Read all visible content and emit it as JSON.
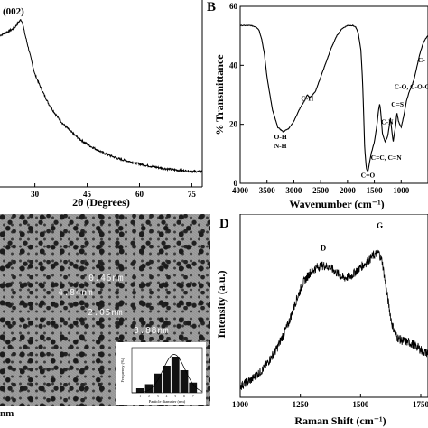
{
  "panels": {
    "b_letter": "B",
    "d_letter": "D"
  },
  "chart_data": [
    {
      "id": "xrd",
      "type": "line",
      "xlabel": "2θ (Degrees)",
      "ylabel": "",
      "xlim": [
        20,
        78
      ],
      "ylim": [
        0,
        1
      ],
      "x_ticks": [
        30,
        45,
        60,
        75
      ],
      "annotations": [
        {
          "text": "(002)",
          "x": 21.5,
          "y": 0.97
        }
      ],
      "series": [
        {
          "x": [
            20,
            22,
            24,
            25.5,
            26,
            26.5,
            27,
            28,
            29,
            30,
            32,
            34,
            36,
            38,
            40,
            42,
            44,
            46,
            48,
            50,
            52,
            54,
            56,
            58,
            60,
            62,
            64,
            66,
            68,
            70,
            72,
            74,
            76,
            78
          ],
          "values": [
            0.86,
            0.88,
            0.9,
            0.94,
            0.95,
            0.93,
            0.88,
            0.8,
            0.72,
            0.64,
            0.55,
            0.47,
            0.41,
            0.36,
            0.32,
            0.285,
            0.255,
            0.23,
            0.21,
            0.19,
            0.175,
            0.16,
            0.15,
            0.14,
            0.13,
            0.122,
            0.115,
            0.108,
            0.102,
            0.097,
            0.093,
            0.09,
            0.088,
            0.086
          ]
        }
      ]
    },
    {
      "id": "ftir",
      "type": "line",
      "xlabel": "Wavenumber (cm⁻¹)",
      "ylabel": "% Transmittance",
      "xlim": [
        4000,
        500
      ],
      "ylim": [
        0,
        60
      ],
      "x_ticks": [
        4000,
        3500,
        3000,
        2500,
        2000,
        1500,
        1000
      ],
      "y_ticks": [
        0,
        20,
        40,
        60
      ],
      "annotations": [
        {
          "text": "O-H",
          "x": 3250,
          "y": 15
        },
        {
          "text": "N-H",
          "x": 3250,
          "y": 12
        },
        {
          "text": "C-H",
          "x": 2750,
          "y": 28
        },
        {
          "text": "C=O",
          "x": 1620,
          "y": 2
        },
        {
          "text": "C=C, C=N",
          "x": 1280,
          "y": 8
        },
        {
          "text": "C-N",
          "x": 1260,
          "y": 20
        },
        {
          "text": "C=S",
          "x": 1070,
          "y": 26
        },
        {
          "text": "C-O, C-O-C",
          "x": 800,
          "y": 32
        },
        {
          "text": "C-",
          "x": 620,
          "y": 41
        }
      ],
      "series": [
        {
          "x": [
            4000,
            3900,
            3800,
            3700,
            3650,
            3600,
            3550,
            3500,
            3400,
            3300,
            3200,
            3100,
            3000,
            2950,
            2900,
            2800,
            2750,
            2700,
            2600,
            2500,
            2400,
            2300,
            2200,
            2100,
            2000,
            1900,
            1850,
            1800,
            1750,
            1720,
            1700,
            1680,
            1650,
            1620,
            1600,
            1580,
            1560,
            1500,
            1450,
            1420,
            1400,
            1380,
            1350,
            1300,
            1250,
            1200,
            1150,
            1100,
            1080,
            1050,
            1000,
            950,
            900,
            850,
            800,
            750,
            700,
            650,
            600,
            550,
            500
          ],
          "values": [
            53.5,
            53.5,
            53.5,
            53,
            52,
            49,
            44,
            36,
            25,
            19,
            17.5,
            18.5,
            21,
            23,
            25,
            28,
            30,
            29,
            31,
            36,
            41,
            46,
            50,
            52.5,
            53.5,
            53.5,
            53,
            51,
            45,
            35,
            24,
            12,
            5,
            4,
            6,
            8,
            10,
            14,
            20,
            25,
            27,
            24,
            17,
            14,
            16,
            22,
            14,
            20,
            24,
            21,
            19,
            23,
            28,
            31,
            33,
            36,
            40,
            44,
            47,
            49,
            50
          ]
        }
      ]
    },
    {
      "id": "raman",
      "type": "line",
      "xlabel": "Raman Shift (cm⁻¹)",
      "ylabel": "Intensity (a.u.)",
      "xlim": [
        1000,
        1780
      ],
      "ylim": [
        0,
        1
      ],
      "x_ticks": [
        1000,
        1250,
        1500,
        1750
      ],
      "annotations": [
        {
          "text": "D",
          "x": 1345,
          "y": 0.8
        },
        {
          "text": "G",
          "x": 1580,
          "y": 0.92
        }
      ],
      "series": [
        {
          "x": [
            1000,
            1050,
            1100,
            1150,
            1200,
            1230,
            1260,
            1290,
            1320,
            1345,
            1370,
            1400,
            1430,
            1460,
            1490,
            1520,
            1550,
            1575,
            1590,
            1610,
            1630,
            1650,
            1670,
            1700,
            1730,
            1760,
            1780
          ],
          "values": [
            0.06,
            0.1,
            0.16,
            0.26,
            0.4,
            0.52,
            0.62,
            0.68,
            0.71,
            0.72,
            0.71,
            0.68,
            0.65,
            0.66,
            0.7,
            0.73,
            0.77,
            0.79,
            0.74,
            0.56,
            0.4,
            0.33,
            0.31,
            0.3,
            0.28,
            0.25,
            0.24
          ]
        }
      ]
    },
    {
      "id": "size-distribution",
      "type": "bar",
      "xlabel": "Particle diameter (nm)",
      "ylabel": "Frequency (%)",
      "categories": [
        "1",
        "2",
        "3",
        "4",
        "5",
        "6",
        "7"
      ],
      "values": [
        2,
        3.8,
        8.5,
        12,
        16,
        10,
        4.5
      ],
      "ylim": [
        0,
        20
      ]
    }
  ],
  "tem": {
    "labels": [
      "0.46nm",
      "4.84nm",
      "2.05nm",
      "3.88nm"
    ],
    "scale_label": "nm"
  }
}
